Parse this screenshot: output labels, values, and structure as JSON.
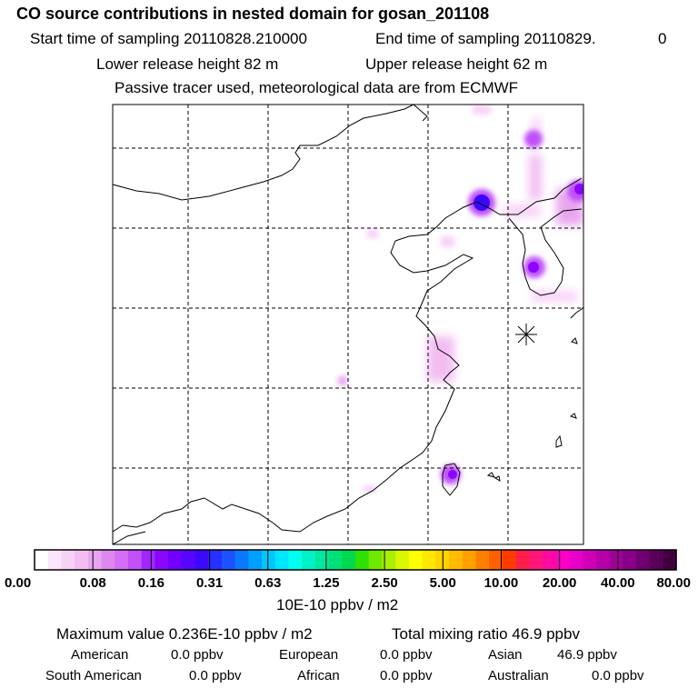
{
  "chart_data": {
    "type": "heatmap",
    "title": "CO  source contributions in nested domain for gosan_201108",
    "start_label": "Start time of sampling 20110828.210000",
    "end_label": "End time of sampling 20110829.",
    "end_hour": "0",
    "lower_release": "Lower release height   82 m",
    "upper_release": "Upper release height   62 m",
    "tracer_note": "Passive tracer used, meteorological data are from ECMWF",
    "colorbar": {
      "unit": "10E-10 ppbv / m2",
      "tick_labels": [
        "0.00",
        "0.08",
        "0.16",
        "0.31",
        "0.63",
        "1.25",
        "2.50",
        "5.00",
        "10.00",
        "20.00",
        "40.00",
        "80.00"
      ],
      "colors": [
        "#ffffff",
        "#fbe6fb",
        "#f7d2f7",
        "#f2bef2",
        "#e9a6f0",
        "#de88ef",
        "#d56ef4",
        "#c050f8",
        "#a326fc",
        "#8a06ff",
        "#7000ff",
        "#5606ff",
        "#3a08ff",
        "#2830ff",
        "#1a52ff",
        "#0a78ff",
        "#00a0ff",
        "#00c8ff",
        "#00e6ff",
        "#00ffee",
        "#00f0c8",
        "#00e8a0",
        "#00e078",
        "#00d850",
        "#30e000",
        "#70e800",
        "#a8f000",
        "#d8f800",
        "#ffff00",
        "#ffe800",
        "#ffd400",
        "#ffbc00",
        "#ffa000",
        "#ff8000",
        "#ff6000",
        "#ff3c00",
        "#ff1e4a",
        "#ff1678",
        "#ff0aa0",
        "#ff00c8",
        "#e800c8",
        "#d000b8",
        "#b800a8",
        "#a00098",
        "#880088",
        "#700070",
        "#580058",
        "#400040"
      ]
    },
    "stats": {
      "max_line": "Maximum value  0.236E-10 ppbv / m2",
      "total_line": "Total mixing ratio       46.9 ppbv"
    },
    "regions": [
      {
        "name": "American",
        "value": "0.0 ppbv"
      },
      {
        "name": "European",
        "value": "0.0 ppbv"
      },
      {
        "name": "Asian",
        "value": "46.9 ppbv"
      },
      {
        "name": "South American",
        "value": "0.0 ppbv"
      },
      {
        "name": "African",
        "value": "0.0 ppbv"
      },
      {
        "name": "Australian",
        "value": "0.0 ppbv"
      }
    ],
    "hotspots": [
      {
        "id": "manchuria-hotspot",
        "value": 0.236
      },
      {
        "id": "korea-hotspot",
        "value": 0.18
      },
      {
        "id": "taiwan-hotspot",
        "value": 0.17
      },
      {
        "id": "northeast-edge-hotspot",
        "value": 0.2
      }
    ]
  }
}
